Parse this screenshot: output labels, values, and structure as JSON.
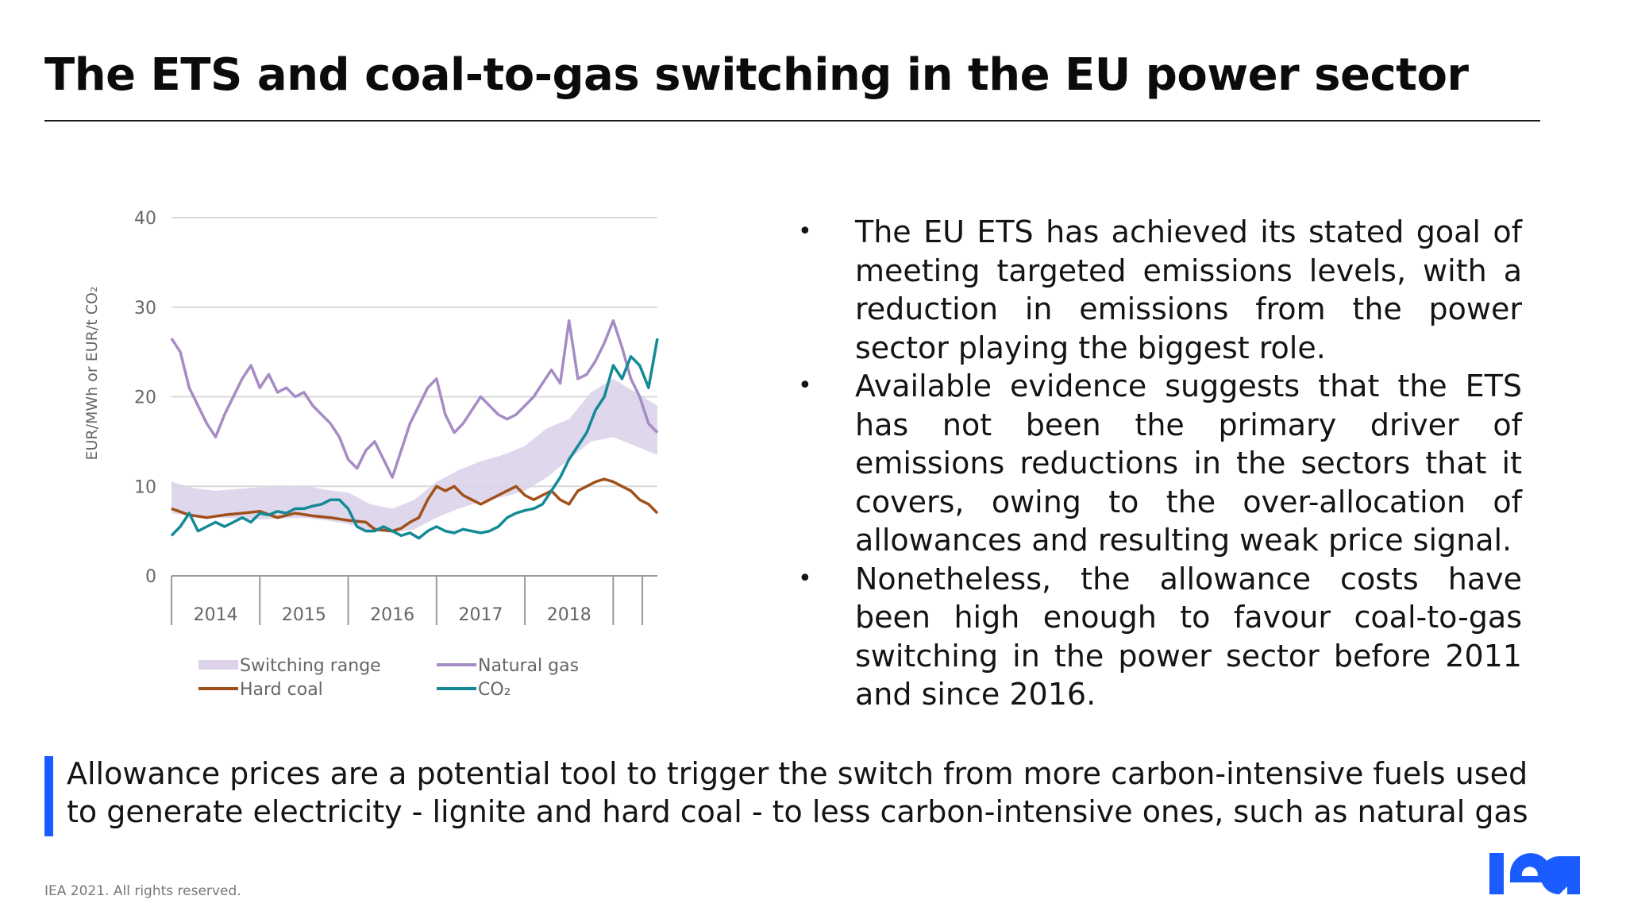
{
  "slide": {
    "title": "The ETS and coal-to-gas switching in the EU power sector",
    "bullets": [
      "The EU ETS has achieved its stated goal of meeting targeted emissions levels, with a reduction in emissions from the power sector playing the biggest role.",
      "Available evidence suggests that the ETS has not been the primary driver of emissions reductions in the sectors that it covers, owing to the over-allocation of allowances and resulting weak price signal.",
      "Nonetheless, the allowance costs have been high enough to favour coal-to-gas switching in the power sector before 2011 and since 2016."
    ],
    "callout": "Allowance prices are a potential tool to trigger the switch from more carbon-intensive fuels used to generate electricity - lignite and hard coal - to less carbon-intensive ones, such as natural gas",
    "footer": "IEA 2021. All rights reserved.",
    "logo_text": "iea",
    "accent_color": "#1a5cff"
  },
  "chart_data": {
    "type": "line",
    "ylabel": "EUR/MWh or EUR/t CO₂",
    "ylim": [
      0,
      40
    ],
    "yticks": [
      "0",
      "10",
      "20",
      "30",
      "40"
    ],
    "xlim": [
      2013.5,
      2019.0
    ],
    "year_labels": [
      "2014",
      "2015",
      "2016",
      "2017",
      "2018"
    ],
    "legend": [
      "Switching range",
      "Natural gas",
      "Hard coal",
      "CO₂"
    ],
    "colors": {
      "switching_range": "#dcd3ea",
      "natural_gas": "#a58cc4",
      "hard_coal": "#a0501a",
      "co2": "#138a96"
    },
    "switching_range": {
      "x": [
        2013.5,
        2013.75,
        2014.0,
        2014.25,
        2014.5,
        2014.75,
        2015.0,
        2015.25,
        2015.5,
        2015.75,
        2016.0,
        2016.25,
        2016.5,
        2016.75,
        2017.0,
        2017.25,
        2017.5,
        2017.75,
        2018.0,
        2018.25,
        2018.5,
        2018.75,
        2019.0
      ],
      "low": [
        7.0,
        6.6,
        6.5,
        6.4,
        6.3,
        6.4,
        6.5,
        6.2,
        5.8,
        5.0,
        4.8,
        5.2,
        6.5,
        7.5,
        8.3,
        8.8,
        9.5,
        11.0,
        13.0,
        15.0,
        15.5,
        14.5,
        13.5
      ],
      "high": [
        10.5,
        9.8,
        9.5,
        9.7,
        9.9,
        10.0,
        10.1,
        9.6,
        9.3,
        8.0,
        7.5,
        8.5,
        10.5,
        11.8,
        12.8,
        13.5,
        14.5,
        16.5,
        17.5,
        20.5,
        22.0,
        20.5,
        19.0
      ]
    },
    "series": [
      {
        "name": "Natural gas",
        "x": [
          2013.5,
          2013.6,
          2013.7,
          2013.8,
          2013.9,
          2014.0,
          2014.1,
          2014.2,
          2014.3,
          2014.4,
          2014.5,
          2014.6,
          2014.7,
          2014.8,
          2014.9,
          2015.0,
          2015.1,
          2015.2,
          2015.3,
          2015.4,
          2015.5,
          2015.6,
          2015.7,
          2015.8,
          2015.9,
          2016.0,
          2016.1,
          2016.2,
          2016.3,
          2016.4,
          2016.5,
          2016.6,
          2016.7,
          2016.8,
          2016.9,
          2017.0,
          2017.1,
          2017.2,
          2017.3,
          2017.4,
          2017.5,
          2017.6,
          2017.7,
          2017.8,
          2017.9,
          2018.0,
          2018.1,
          2018.2,
          2018.3,
          2018.4,
          2018.5,
          2018.6,
          2018.7,
          2018.8,
          2018.9,
          2019.0
        ],
        "values": [
          26.5,
          25.0,
          21.0,
          19.0,
          17.0,
          15.5,
          18.0,
          20.0,
          22.0,
          23.5,
          21.0,
          22.5,
          20.5,
          21.0,
          20.0,
          20.5,
          19.0,
          18.0,
          17.0,
          15.5,
          13.0,
          12.0,
          14.0,
          15.0,
          13.0,
          11.0,
          14.0,
          17.0,
          19.0,
          21.0,
          22.0,
          18.0,
          16.0,
          17.0,
          18.5,
          20.0,
          19.0,
          18.0,
          17.5,
          18.0,
          19.0,
          20.0,
          21.5,
          23.0,
          21.5,
          28.5,
          22.0,
          22.5,
          24.0,
          26.0,
          28.5,
          25.5,
          22.0,
          20.0,
          17.0,
          16.0
        ]
      },
      {
        "name": "Hard coal",
        "x": [
          2013.5,
          2013.7,
          2013.9,
          2014.1,
          2014.3,
          2014.5,
          2014.7,
          2014.9,
          2015.1,
          2015.3,
          2015.5,
          2015.7,
          2015.8,
          2016.0,
          2016.1,
          2016.2,
          2016.3,
          2016.4,
          2016.5,
          2016.6,
          2016.7,
          2016.8,
          2016.9,
          2017.0,
          2017.1,
          2017.2,
          2017.3,
          2017.4,
          2017.5,
          2017.6,
          2017.7,
          2017.8,
          2017.9,
          2018.0,
          2018.1,
          2018.2,
          2018.3,
          2018.4,
          2018.5,
          2018.6,
          2018.7,
          2018.8,
          2018.9,
          2019.0
        ],
        "values": [
          7.5,
          6.8,
          6.5,
          6.8,
          7.0,
          7.2,
          6.5,
          7.0,
          6.7,
          6.5,
          6.2,
          6.0,
          5.2,
          5.0,
          5.3,
          6.0,
          6.5,
          8.5,
          10.0,
          9.5,
          10.0,
          9.0,
          8.5,
          8.0,
          8.5,
          9.0,
          9.5,
          10.0,
          9.0,
          8.5,
          9.0,
          9.5,
          8.5,
          8.0,
          9.5,
          10.0,
          10.5,
          10.8,
          10.5,
          10.0,
          9.5,
          8.5,
          8.0,
          7.0
        ]
      },
      {
        "name": "CO₂",
        "x": [
          2013.5,
          2013.6,
          2013.7,
          2013.8,
          2013.9,
          2014.0,
          2014.1,
          2014.2,
          2014.3,
          2014.4,
          2014.5,
          2014.6,
          2014.7,
          2014.8,
          2014.9,
          2015.0,
          2015.1,
          2015.2,
          2015.3,
          2015.4,
          2015.5,
          2015.6,
          2015.7,
          2015.8,
          2015.9,
          2016.0,
          2016.1,
          2016.2,
          2016.3,
          2016.4,
          2016.5,
          2016.6,
          2016.7,
          2016.8,
          2016.9,
          2017.0,
          2017.1,
          2017.2,
          2017.3,
          2017.4,
          2017.5,
          2017.6,
          2017.7,
          2017.8,
          2017.9,
          2018.0,
          2018.1,
          2018.2,
          2018.3,
          2018.4,
          2018.5,
          2018.6,
          2018.7,
          2018.8,
          2018.9,
          2019.0
        ],
        "values": [
          4.5,
          5.5,
          7.0,
          5.0,
          5.5,
          6.0,
          5.5,
          6.0,
          6.5,
          6.0,
          7.0,
          6.8,
          7.2,
          7.0,
          7.5,
          7.5,
          7.8,
          8.0,
          8.5,
          8.5,
          7.5,
          5.5,
          5.0,
          5.0,
          5.5,
          5.0,
          4.5,
          4.8,
          4.2,
          5.0,
          5.5,
          5.0,
          4.8,
          5.2,
          5.0,
          4.8,
          5.0,
          5.5,
          6.5,
          7.0,
          7.3,
          7.5,
          8.0,
          9.5,
          11.0,
          13.0,
          14.5,
          16.0,
          18.5,
          20.0,
          23.5,
          22.0,
          24.5,
          23.5,
          21.0,
          26.5
        ]
      }
    ]
  }
}
